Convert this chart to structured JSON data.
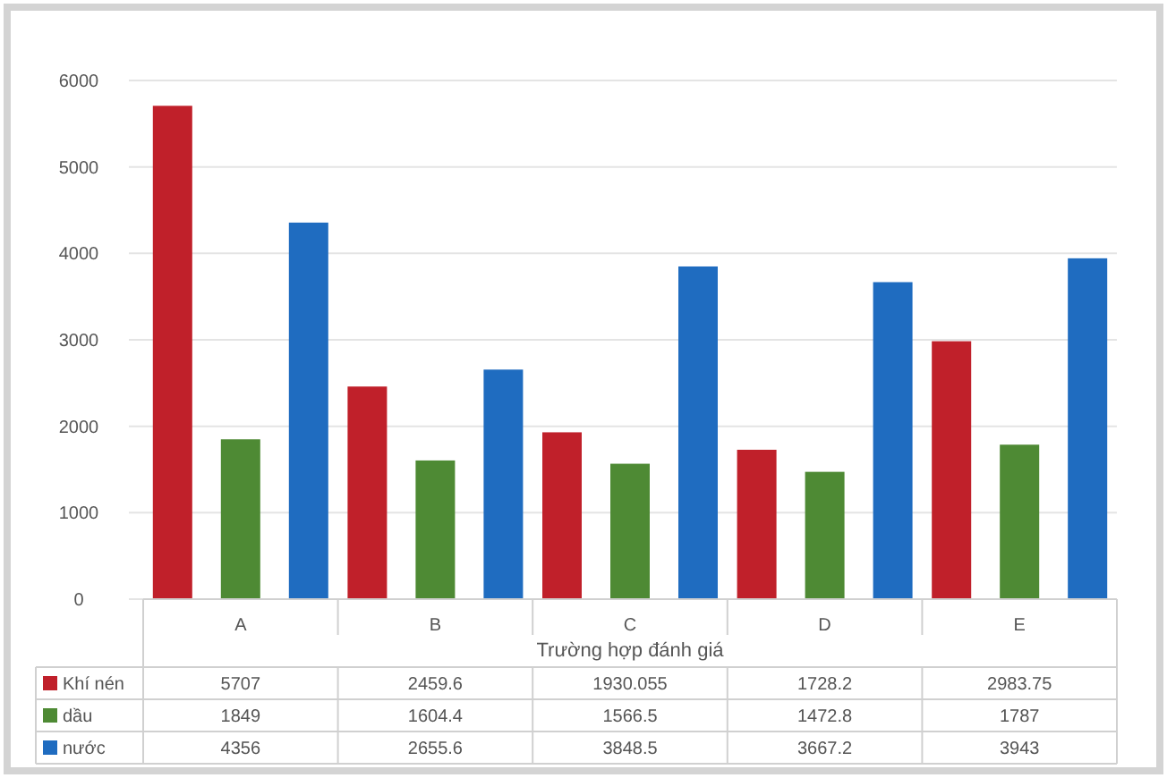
{
  "chart_data": {
    "type": "bar",
    "xlabel": "Trường hợp đánh giá",
    "categories": [
      "A",
      "B",
      "C",
      "D",
      "E"
    ],
    "series": [
      {
        "name": "Khí nén",
        "color": "#c0202a",
        "values": [
          5707,
          2459.6,
          1930.055,
          1728.2,
          2983.75
        ]
      },
      {
        "name": "dầu",
        "color": "#4e8a34",
        "values": [
          1849,
          1604.4,
          1566.5,
          1472.8,
          1787
        ]
      },
      {
        "name": "nước",
        "color": "#1f6cc0",
        "values": [
          4356,
          2655.6,
          3848.5,
          3667.2,
          3943
        ]
      }
    ],
    "ylim": [
      0,
      6000
    ],
    "yticks": [
      0,
      1000,
      2000,
      3000,
      4000,
      5000,
      6000
    ],
    "grid": "y",
    "legend": "bottom",
    "data_labels": true
  }
}
